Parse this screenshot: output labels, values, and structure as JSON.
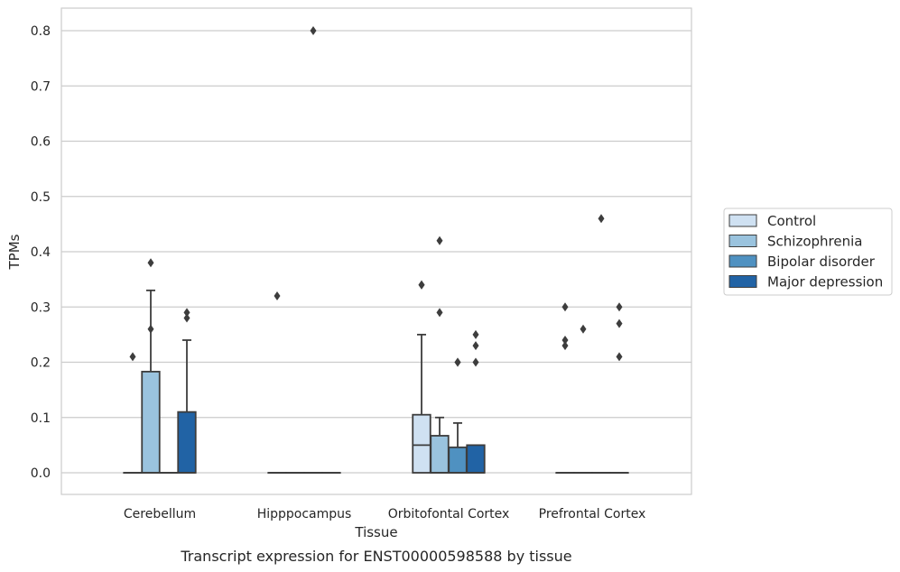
{
  "caption": "Transcript expression for ENST00000598588 by tissue",
  "chart_data": {
    "type": "box",
    "xlabel": "Tissue",
    "ylabel": "TPMs",
    "ylim": [
      -0.04,
      0.84
    ],
    "yticks": [
      0.0,
      0.1,
      0.2,
      0.3,
      0.4,
      0.5,
      0.6,
      0.7,
      0.8
    ],
    "ytick_labels": [
      "0.0",
      "0.1",
      "0.2",
      "0.3",
      "0.4",
      "0.5",
      "0.6",
      "0.7",
      "0.8"
    ],
    "grid": true,
    "legend_position": "right",
    "categories": [
      "Cerebellum",
      "Hipppocampus",
      "Orbitofontal Cortex",
      "Prefrontal Cortex"
    ],
    "series": [
      {
        "name": "Control",
        "color": "#cfe1f2",
        "boxes": [
          {
            "q1": 0,
            "median": 0,
            "q3": 0,
            "whisker_low": 0,
            "whisker_high": 0,
            "outliers": [
              0.21
            ]
          },
          {
            "q1": 0,
            "median": 0,
            "q3": 0,
            "whisker_low": 0,
            "whisker_high": 0,
            "outliers": [
              0.32
            ]
          },
          {
            "q1": 0,
            "median": 0.05,
            "q3": 0.105,
            "whisker_low": 0,
            "whisker_high": 0.25,
            "outliers": [
              0.34,
              0.34
            ]
          },
          {
            "q1": 0,
            "median": 0,
            "q3": 0,
            "whisker_low": 0,
            "whisker_high": 0,
            "outliers": [
              0.3,
              0.24,
              0.23
            ]
          }
        ]
      },
      {
        "name": "Schizophrenia",
        "color": "#9ac3de",
        "boxes": [
          {
            "q1": 0,
            "median": 0,
            "q3": 0.183,
            "whisker_low": 0,
            "whisker_high": 0.33,
            "outliers": [
              0.38,
              0.26
            ]
          },
          {
            "q1": 0,
            "median": 0,
            "q3": 0,
            "whisker_low": 0,
            "whisker_high": 0,
            "outliers": []
          },
          {
            "q1": 0,
            "median": 0,
            "q3": 0.067,
            "whisker_low": 0,
            "whisker_high": 0.1,
            "outliers": [
              0.42,
              0.29
            ]
          },
          {
            "q1": 0,
            "median": 0,
            "q3": 0,
            "whisker_low": 0,
            "whisker_high": 0,
            "outliers": [
              0.26
            ]
          }
        ]
      },
      {
        "name": "Bipolar disorder",
        "color": "#4f91c1",
        "boxes": [
          {
            "q1": 0,
            "median": 0,
            "q3": 0,
            "whisker_low": 0,
            "whisker_high": 0,
            "outliers": []
          },
          {
            "q1": 0,
            "median": 0,
            "q3": 0,
            "whisker_low": 0,
            "whisker_high": 0,
            "outliers": [
              0.8
            ]
          },
          {
            "q1": 0,
            "median": 0,
            "q3": 0.046,
            "whisker_low": 0,
            "whisker_high": 0.09,
            "outliers": [
              0.2,
              0.2
            ]
          },
          {
            "q1": 0,
            "median": 0,
            "q3": 0,
            "whisker_low": 0,
            "whisker_high": 0,
            "outliers": [
              0.46
            ]
          }
        ]
      },
      {
        "name": "Major depression",
        "color": "#2163a5",
        "boxes": [
          {
            "q1": 0,
            "median": 0,
            "q3": 0.11,
            "whisker_low": 0,
            "whisker_high": 0.24,
            "outliers": [
              0.29,
              0.28
            ]
          },
          {
            "q1": 0,
            "median": 0,
            "q3": 0,
            "whisker_low": 0,
            "whisker_high": 0,
            "outliers": []
          },
          {
            "q1": 0,
            "median": 0,
            "q3": 0.05,
            "whisker_low": 0,
            "whisker_high": 0.05,
            "outliers": [
              0.25,
              0.23,
              0.2
            ]
          },
          {
            "q1": 0,
            "median": 0,
            "q3": 0,
            "whisker_low": 0,
            "whisker_high": 0,
            "outliers": [
              0.3,
              0.27,
              0.21
            ]
          }
        ]
      }
    ]
  }
}
